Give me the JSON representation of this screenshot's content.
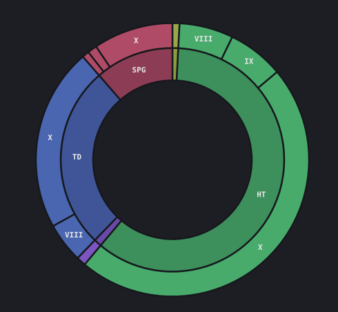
{
  "chart_data": {
    "type": "sunburst",
    "nodes": [
      {
        "name": null,
        "color": "#8a9a3f",
        "value": 3,
        "children": [
          {
            "name": null,
            "color": "#96a84a",
            "value": 3
          }
        ]
      },
      {
        "name": "HT",
        "color": "#3d8f5c",
        "value": 217,
        "children": [
          {
            "name": "VIII",
            "color": "#48ab6c",
            "value": 23
          },
          {
            "name": "IX",
            "color": "#48ab6c",
            "value": 24
          },
          {
            "name": "X",
            "color": "#48ab6c",
            "value": 170
          }
        ]
      },
      {
        "name": null,
        "color": "#6a4aa8",
        "value": 4,
        "children": [
          {
            "name": null,
            "color": "#7b55c0",
            "value": 4
          }
        ]
      },
      {
        "name": "TD",
        "color": "#3f5597",
        "value": 95,
        "children": [
          {
            "name": "VIII",
            "color": "#4a66b0",
            "value": 17
          },
          {
            "name": "X",
            "color": "#4a66b0",
            "value": 78
          }
        ]
      },
      {
        "name": "SPG",
        "color": "#8c3c55",
        "value": 41,
        "children": [
          {
            "name": null,
            "color": "#b04b67",
            "value": 3
          },
          {
            "name": null,
            "color": "#b04b67",
            "value": 4
          },
          {
            "name": "X",
            "color": "#b04b67",
            "value": 34
          }
        ]
      }
    ]
  }
}
